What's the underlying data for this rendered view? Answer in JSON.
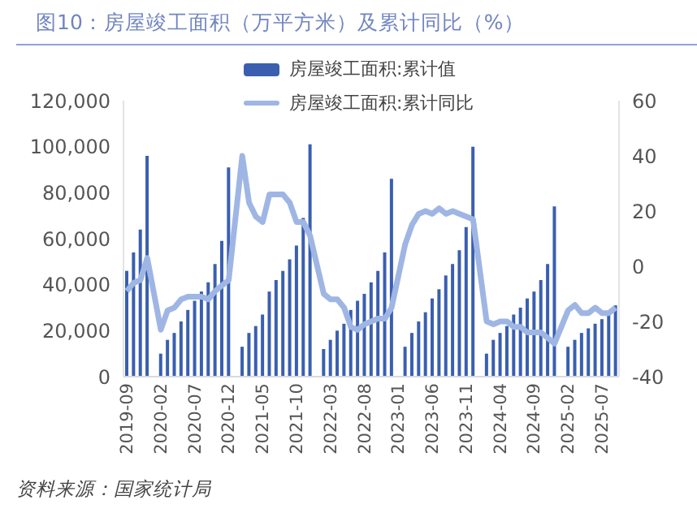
{
  "chart_data": {
    "type": "bar",
    "title": "图10：房屋竣工面积（万平方米）及累计同比（%）",
    "categories": [
      "2019-09",
      null,
      null,
      null,
      null,
      "2020-02",
      null,
      null,
      null,
      null,
      "2020-07",
      null,
      null,
      null,
      null,
      "2020-12",
      null,
      null,
      null,
      null,
      "2021-05",
      null,
      null,
      null,
      null,
      "2021-10",
      null,
      null,
      null,
      null,
      "2022-03",
      null,
      null,
      null,
      null,
      "2022-08",
      null,
      null,
      null,
      null,
      "2023-01",
      null,
      null,
      null,
      null,
      "2023-06",
      null,
      null,
      null,
      null,
      "2023-11",
      null,
      null,
      null,
      null,
      "2024-04",
      null,
      null,
      null,
      null,
      "2024-09",
      null,
      null,
      null,
      null,
      "2025-02",
      null,
      null,
      null,
      null,
      "2025-07",
      null,
      null
    ],
    "series": [
      {
        "name": "房屋竣工面积:累计值",
        "axis": "y",
        "color": "#3a5fb0",
        "values": [
          46000,
          54000,
          64000,
          96000,
          null,
          10000,
          16000,
          19000,
          24000,
          29000,
          33000,
          37000,
          41000,
          49000,
          59000,
          91000,
          null,
          13000,
          19000,
          22000,
          27000,
          37000,
          42000,
          46000,
          51000,
          57000,
          69000,
          101000,
          null,
          12000,
          16000,
          20000,
          23000,
          29000,
          33000,
          36000,
          41000,
          46000,
          54000,
          86000,
          null,
          13000,
          19000,
          24000,
          28000,
          34000,
          38000,
          44000,
          49000,
          55000,
          65000,
          100000,
          null,
          10000,
          16000,
          19000,
          22000,
          27000,
          30000,
          34000,
          37000,
          42000,
          49000,
          74000,
          null,
          13000,
          16000,
          19000,
          21000,
          23000,
          25000,
          28000,
          31000
        ]
      },
      {
        "name": "房屋竣工面积:累计同比",
        "type": "line",
        "axis": "y2",
        "color": "#9fb6e4",
        "values": [
          -9,
          -6,
          -5,
          3,
          null,
          -23,
          -16,
          -15,
          -12,
          -11,
          -11,
          -11,
          -12,
          -9,
          -7,
          -5,
          null,
          40,
          23,
          18,
          16,
          26,
          26,
          26,
          23,
          16,
          16,
          11,
          null,
          -10,
          -12,
          -12,
          -15,
          -22,
          -23,
          -21,
          -20,
          -19,
          -19,
          -15,
          null,
          8,
          15,
          19,
          20,
          19,
          21,
          19,
          20,
          19,
          18,
          17,
          null,
          -20,
          -21,
          -20,
          -20,
          -22,
          -22,
          -24,
          -24,
          -24,
          -26,
          -28,
          null,
          -16,
          -14,
          -17,
          -17,
          -15,
          -17,
          -17,
          -15
        ]
      }
    ],
    "ylim": [
      0,
      120000
    ],
    "yticks": [
      0,
      {
        "value": 20000,
        "label": "20,000"
      },
      {
        "value": 40000,
        "label": "40,000"
      },
      {
        "value": 60000,
        "label": "60,000"
      },
      {
        "value": 80000,
        "label": "80,000"
      },
      {
        "value": 100000,
        "label": "100,000"
      },
      {
        "value": 120000,
        "label": "120,000"
      }
    ],
    "y2lim": [
      -40,
      60
    ],
    "y2ticks": [
      -40,
      -20,
      0,
      20,
      40,
      60
    ],
    "legend": "top",
    "marker": "none",
    "annotations": [
      "资料来源：国家统计局"
    ]
  }
}
